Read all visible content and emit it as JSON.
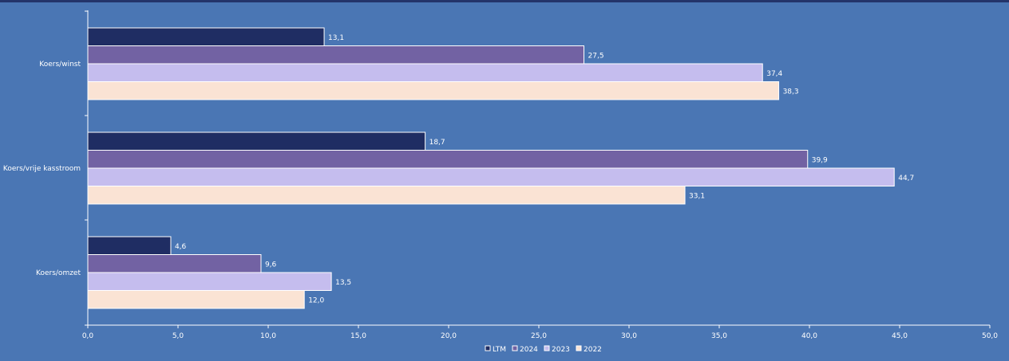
{
  "chart_data": {
    "type": "bar",
    "orientation": "horizontal",
    "categories": [
      "Koers/winst",
      "Koers/vrije kasstroom",
      "Koers/omzet"
    ],
    "series": [
      {
        "name": "LTM",
        "color": "#1f2d63",
        "values": [
          13.1,
          18.7,
          4.6
        ],
        "labels": [
          "13,1",
          "18,7",
          "4,6"
        ]
      },
      {
        "name": "2024",
        "color": "#7262a3",
        "values": [
          27.5,
          39.9,
          9.6
        ],
        "labels": [
          "27,5",
          "39,9",
          "9,6"
        ]
      },
      {
        "name": "2023",
        "color": "#c5bdee",
        "values": [
          37.4,
          44.7,
          13.5
        ],
        "labels": [
          "37,4",
          "44,7",
          "13,5"
        ]
      },
      {
        "name": "2022",
        "color": "#fae3d4",
        "values": [
          38.3,
          33.1,
          12.0
        ],
        "labels": [
          "38,3",
          "33,1",
          "12,0"
        ]
      }
    ],
    "xlim": [
      0,
      50
    ],
    "xticks": [
      "0,0",
      "5,0",
      "10,0",
      "15,0",
      "20,0",
      "25,0",
      "30,0",
      "35,0",
      "40,0",
      "45,0",
      "50,0"
    ],
    "grid": false,
    "legend": "bottom-center",
    "bar_outline": "#ffffff",
    "label_color": "#ffffff",
    "background": "#4a76b4"
  }
}
